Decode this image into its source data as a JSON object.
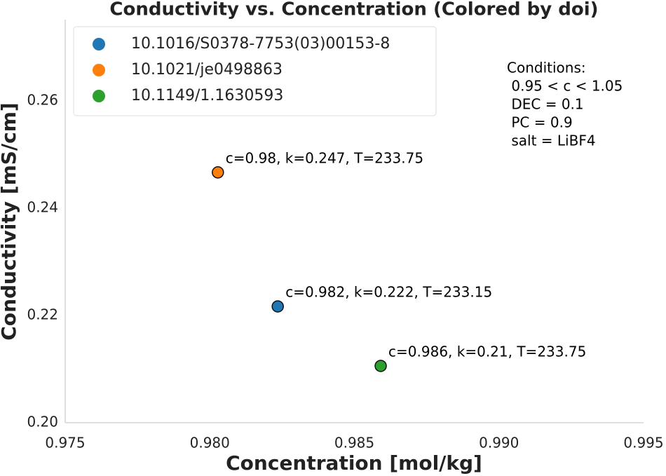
{
  "chart_data": {
    "type": "scatter",
    "title": "Conductivity vs. Concentration (Colored by doi)",
    "x_label": "Concentration [mol/kg]",
    "y_label": "Conductivity [mS/cm]",
    "series": [
      {
        "name": "10.1016/S0378-7753(03)00153-8",
        "color": "#1f77b4",
        "x": [
          0.98235
        ],
        "values": [
          0.2217
        ],
        "annotations": [
          "c=0.982, k=0.222, T=233.15"
        ]
      },
      {
        "name": "10.1021/je0498863",
        "color": "#ff7f0e",
        "x": [
          0.98028
        ],
        "values": [
          0.2467
        ],
        "annotations": [
          "c=0.98, k=0.247, T=233.75"
        ]
      },
      {
        "name": "10.1149/1.1630593",
        "color": "#2ca02c",
        "x": [
          0.98591
        ],
        "values": [
          0.2106
        ],
        "annotations": [
          "c=0.986, k=0.21, T=233.75"
        ]
      }
    ],
    "conditions": [
      "Conditions:",
      " 0.95 < c < 1.05",
      " DEC = 0.1",
      " PC = 0.9",
      " salt = LiBF4"
    ],
    "xlim": [
      0.975,
      0.995
    ],
    "ylim": [
      0.2,
      0.2752
    ],
    "xticks": [
      0.975,
      {
        "value": 0.98,
        "label": "0.980"
      },
      0.985,
      {
        "value": 0.99,
        "label": "0.990"
      },
      0.995
    ],
    "yticks": [
      {
        "value": 0.2,
        "label": "0.20"
      },
      0.22,
      0.24,
      0.26
    ],
    "grid": false,
    "legend": "upper left"
  }
}
